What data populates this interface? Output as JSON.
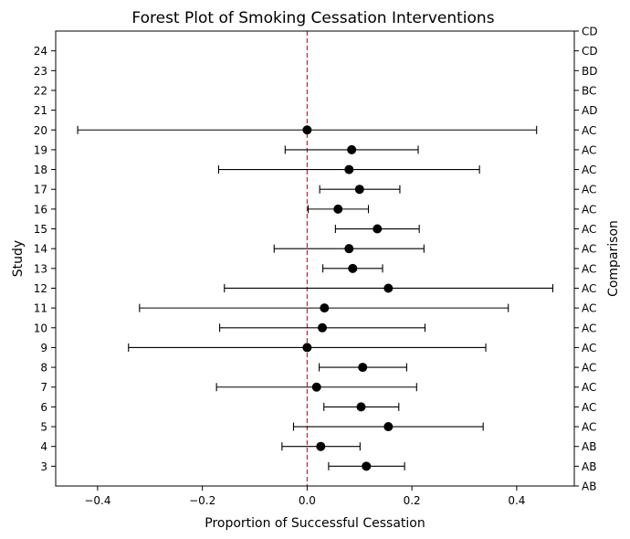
{
  "chart_data": {
    "type": "scatter",
    "title": "Forest Plot of Smoking Cessation Interventions",
    "xlabel": "Proportion of Successful Cessation",
    "ylabel": "Study",
    "ylabel_right": "Comparison",
    "xlim": [
      -0.48,
      0.51
    ],
    "ylim": [
      2,
      25
    ],
    "xticks": [
      -0.4,
      -0.2,
      0.0,
      0.2,
      0.4
    ],
    "xtick_labels": [
      "−0.4",
      "−0.2",
      "0.0",
      "0.2",
      "0.4"
    ],
    "yticks": [
      3,
      4,
      5,
      6,
      7,
      8,
      9,
      10,
      11,
      12,
      13,
      14,
      15,
      16,
      17,
      18,
      19,
      20,
      21,
      22,
      23,
      24
    ],
    "ytick_labels": [
      "3",
      "4",
      "5",
      "6",
      "7",
      "8",
      "9",
      "10",
      "11",
      "12",
      "13",
      "14",
      "15",
      "16",
      "17",
      "18",
      "19",
      "20",
      "21",
      "22",
      "23",
      "24"
    ],
    "right_labels": [
      "AB",
      "AB",
      "AB",
      "AC",
      "AC",
      "AC",
      "AC",
      "AC",
      "AC",
      "AC",
      "AC",
      "AC",
      "AC",
      "AC",
      "AC",
      "AC",
      "AC",
      "AC",
      "AC",
      "AD",
      "BC",
      "BD",
      "CD",
      "CD"
    ],
    "reference_line": {
      "x": 0.0,
      "color": "#e41a1c",
      "style": "dashed"
    },
    "marker_color": "#000000",
    "grid": false,
    "points": [
      {
        "study": 3,
        "estimate": 0.113,
        "lower": 0.041,
        "upper": 0.186
      },
      {
        "study": 4,
        "estimate": 0.026,
        "lower": -0.048,
        "upper": 0.101
      },
      {
        "study": 5,
        "estimate": 0.155,
        "lower": -0.026,
        "upper": 0.336
      },
      {
        "study": 6,
        "estimate": 0.103,
        "lower": 0.032,
        "upper": 0.175
      },
      {
        "study": 7,
        "estimate": 0.018,
        "lower": -0.173,
        "upper": 0.209
      },
      {
        "study": 8,
        "estimate": 0.106,
        "lower": 0.023,
        "upper": 0.19
      },
      {
        "study": 9,
        "estimate": 0.0,
        "lower": -0.341,
        "upper": 0.341
      },
      {
        "study": 10,
        "estimate": 0.029,
        "lower": -0.167,
        "upper": 0.225
      },
      {
        "study": 11,
        "estimate": 0.033,
        "lower": -0.32,
        "upper": 0.384
      },
      {
        "study": 12,
        "estimate": 0.155,
        "lower": -0.158,
        "upper": 0.469
      },
      {
        "study": 13,
        "estimate": 0.087,
        "lower": 0.03,
        "upper": 0.144
      },
      {
        "study": 14,
        "estimate": 0.08,
        "lower": -0.063,
        "upper": 0.223
      },
      {
        "study": 15,
        "estimate": 0.134,
        "lower": 0.054,
        "upper": 0.214
      },
      {
        "study": 16,
        "estimate": 0.059,
        "lower": 0.002,
        "upper": 0.117
      },
      {
        "study": 17,
        "estimate": 0.1,
        "lower": 0.024,
        "upper": 0.177
      },
      {
        "study": 18,
        "estimate": 0.08,
        "lower": -0.169,
        "upper": 0.329
      },
      {
        "study": 19,
        "estimate": 0.085,
        "lower": -0.042,
        "upper": 0.212
      },
      {
        "study": 20,
        "estimate": 0.0,
        "lower": -0.438,
        "upper": 0.438
      }
    ]
  }
}
